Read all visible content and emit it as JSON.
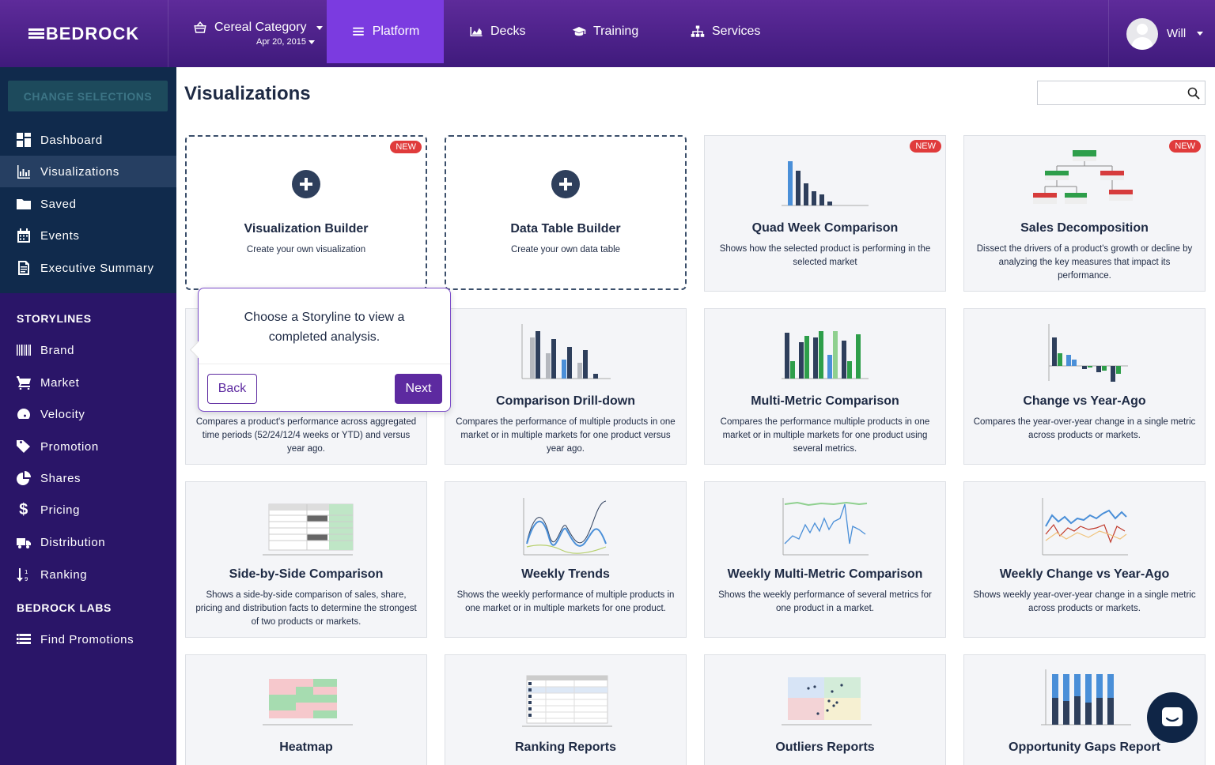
{
  "brand": {
    "name": "BEDROCK"
  },
  "topnav": {
    "category": "Cereal Category",
    "date": "Apr 20, 2015",
    "platform": "Platform",
    "decks": "Decks",
    "training": "Training",
    "services": "Services",
    "user": "Will"
  },
  "sidebar": {
    "change_selections": "CHANGE SELECTIONS",
    "main_items": [
      {
        "label": "Dashboard",
        "icon": "dashboard-icon"
      },
      {
        "label": "Visualizations",
        "icon": "bar-chart-icon"
      },
      {
        "label": "Saved",
        "icon": "folder-icon"
      },
      {
        "label": "Events",
        "icon": "calendar-icon"
      },
      {
        "label": "Executive Summary",
        "icon": "document-icon"
      }
    ],
    "storylines_heading": "STORYLINES",
    "storylines": [
      {
        "label": "Brand",
        "icon": "barcode-icon"
      },
      {
        "label": "Market",
        "icon": "cart-icon"
      },
      {
        "label": "Velocity",
        "icon": "gauge-icon"
      },
      {
        "label": "Promotion",
        "icon": "tag-icon"
      },
      {
        "label": "Shares",
        "icon": "pie-icon"
      },
      {
        "label": "Pricing",
        "icon": "dollar-icon"
      },
      {
        "label": "Distribution",
        "icon": "truck-icon"
      },
      {
        "label": "Ranking",
        "icon": "sort-numeric-icon"
      }
    ],
    "labs_heading": "BEDROCK LABS",
    "labs": [
      {
        "label": "Find Promotions",
        "icon": "list-icon"
      }
    ]
  },
  "main": {
    "title": "Visualizations",
    "search_placeholder": "",
    "new_badge": "NEW",
    "cards": [
      {
        "title": "Visualization Builder",
        "desc": "Create your own visualization"
      },
      {
        "title": "Data Table Builder",
        "desc": "Create your own data table"
      },
      {
        "title": "Quad Week Comparison",
        "desc": "Shows how the selected product is performing in the selected market"
      },
      {
        "title": "Sales Decomposition",
        "desc": "Dissect the drivers of a product's growth or decline by analyzing the key measures that impact its performance."
      },
      {
        "title": "",
        "desc": "Compares a product's performance across aggregated time periods (52/24/12/4 weeks or YTD) and versus year ago."
      },
      {
        "title": "Comparison Drill-down",
        "desc": "Compares the performance of multiple products in one market or in multiple markets for one product versus year ago."
      },
      {
        "title": "Multi-Metric Comparison",
        "desc": "Compares the performance multiple products in one market or in multiple markets for one product using several metrics."
      },
      {
        "title": "Change vs Year-Ago",
        "desc": "Compares the year-over-year change in a single metric across products or markets."
      },
      {
        "title": "Side-by-Side Comparison",
        "desc": "Shows a side-by-side comparison of sales, share, pricing and distribution facts to determine the strongest of two products or markets."
      },
      {
        "title": "Weekly Trends",
        "desc": "Shows the weekly performance of multiple products in one market or in multiple markets for one product."
      },
      {
        "title": "Weekly Multi-Metric Comparison",
        "desc": "Shows the weekly performance of several metrics for one product in a market."
      },
      {
        "title": "Weekly Change vs Year-Ago",
        "desc": "Shows weekly year-over-year change in a single metric across products or markets."
      },
      {
        "title": "Heatmap",
        "desc": ""
      },
      {
        "title": "Ranking Reports",
        "desc": ""
      },
      {
        "title": "Outliers Reports",
        "desc": ""
      },
      {
        "title": "Opportunity Gaps Report",
        "desc": ""
      }
    ]
  },
  "tooltip": {
    "message": "Choose a Storyline to view a completed analysis.",
    "back": "Back",
    "next": "Next"
  },
  "colors": {
    "accent": "#5d2aa0",
    "platform_active": "#7b3be0",
    "sidebar": "#2a1568",
    "new_badge": "#e03b3b"
  }
}
